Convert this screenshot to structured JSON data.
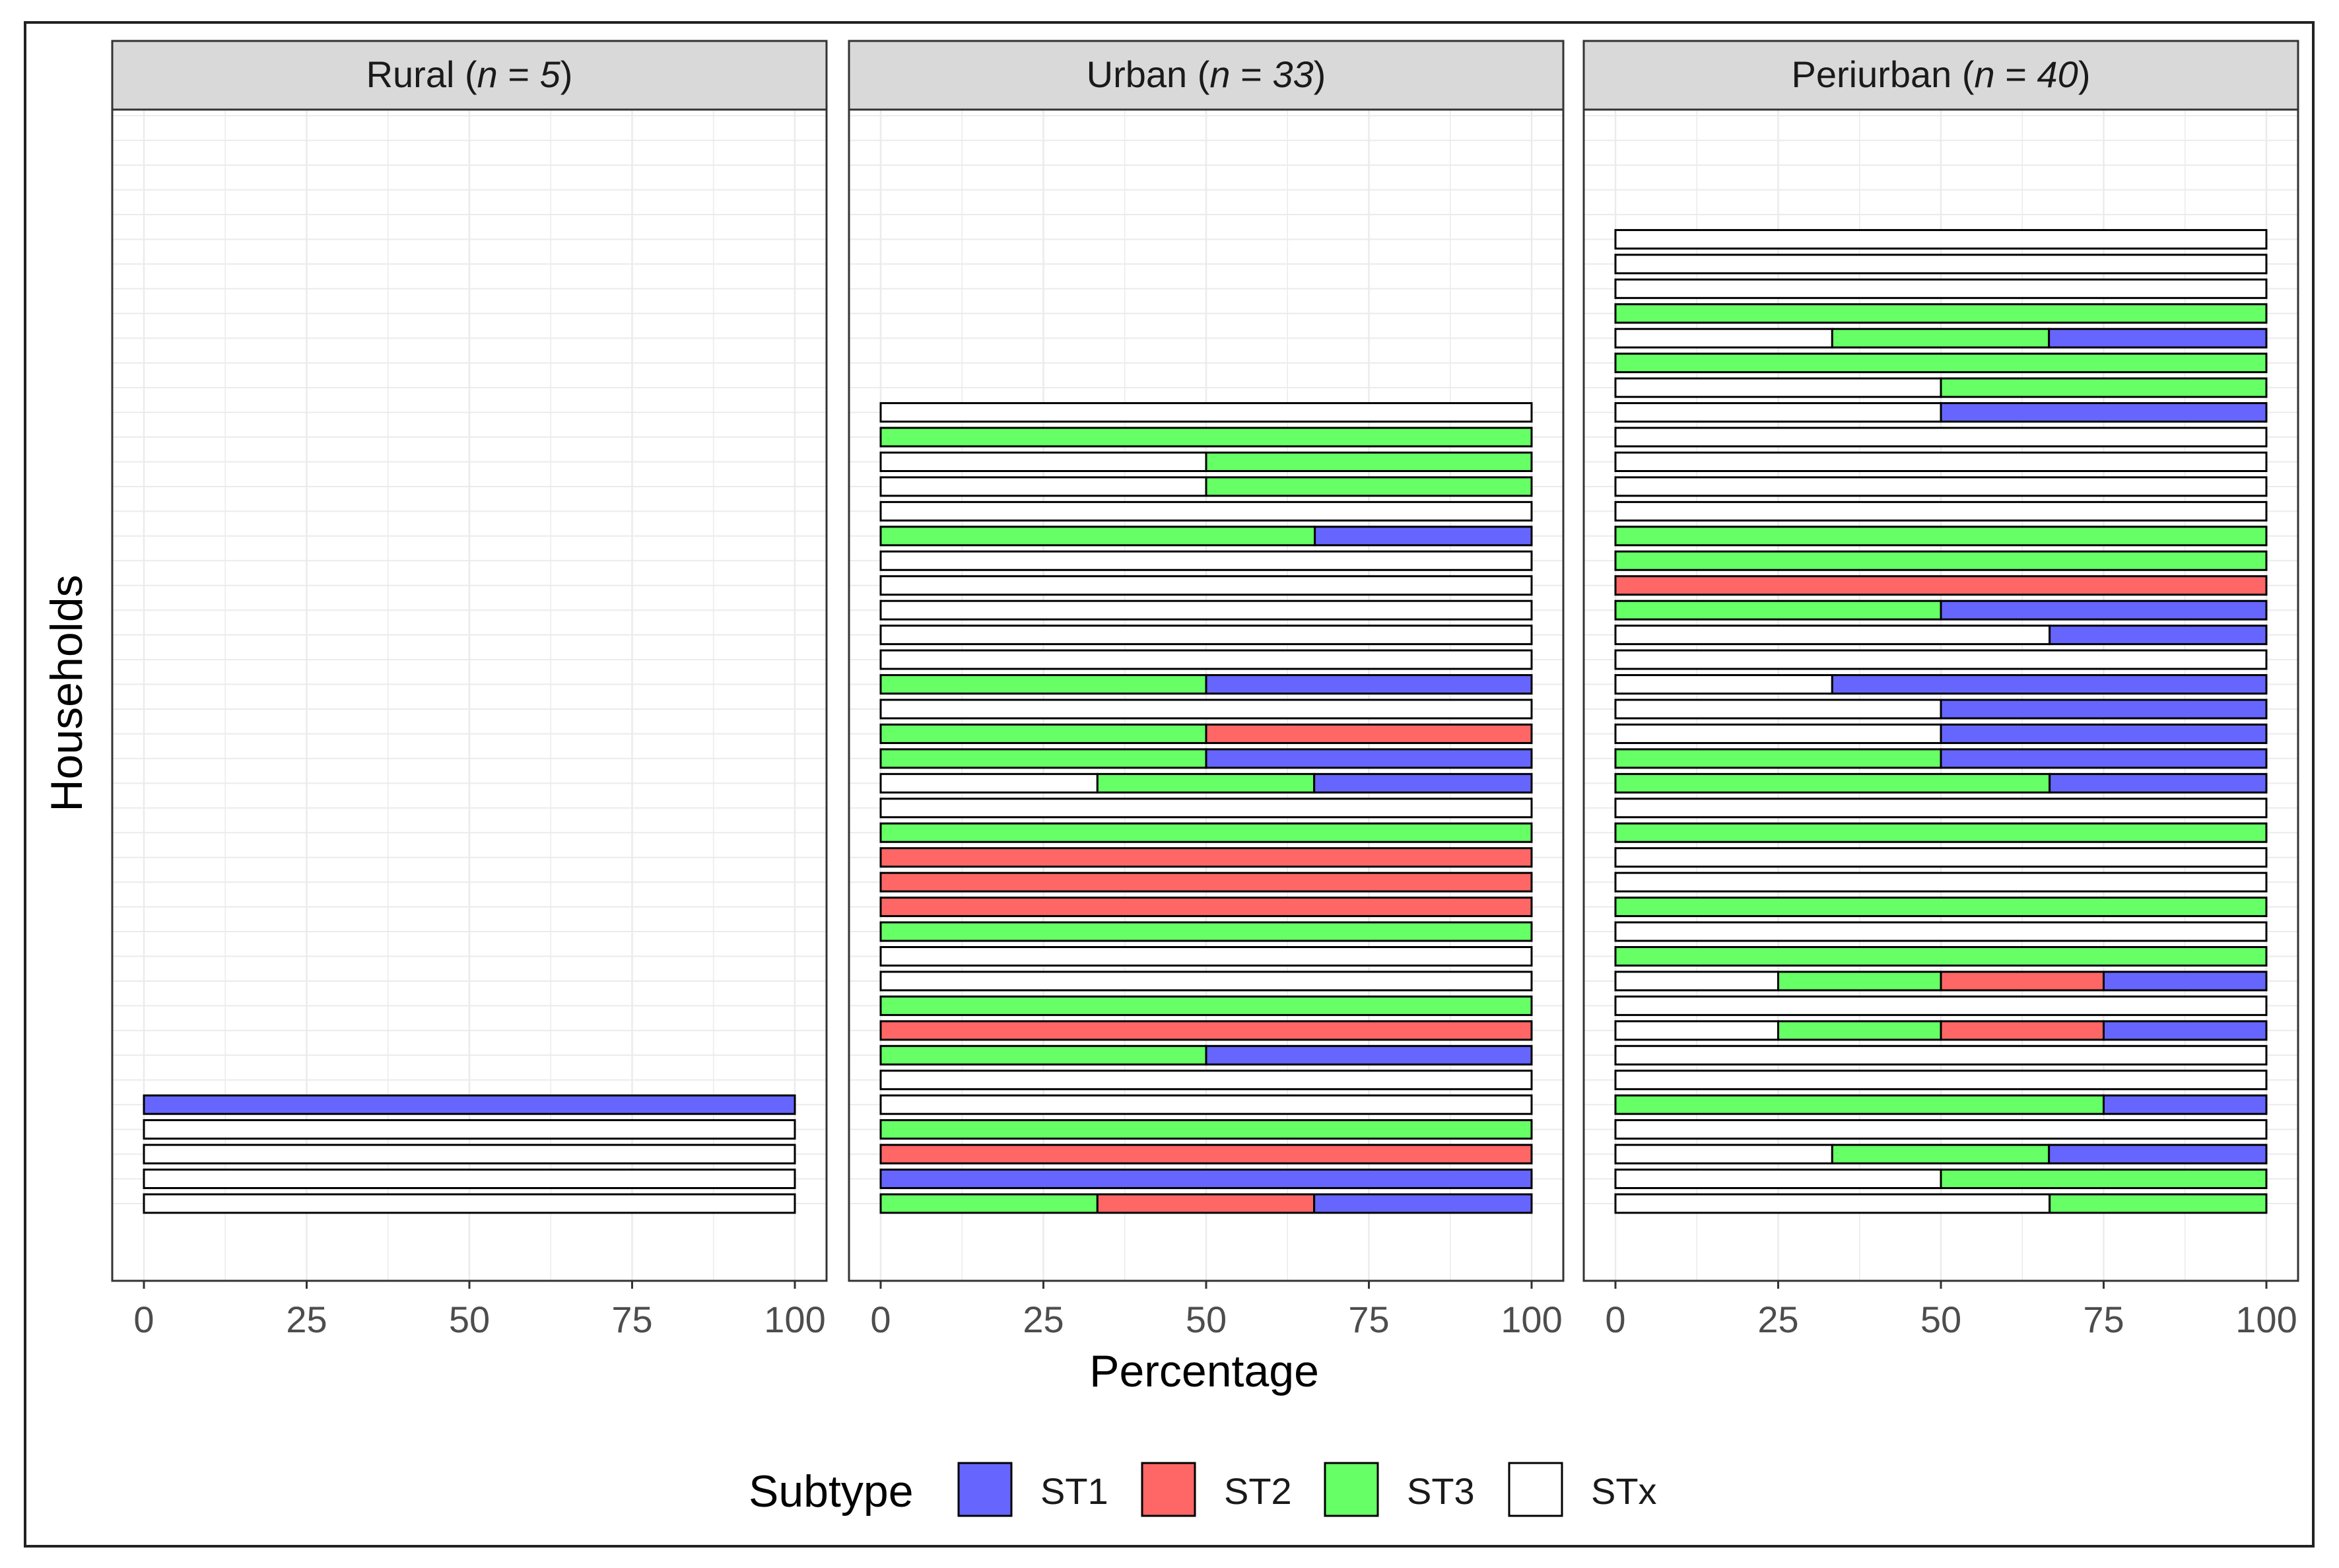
{
  "chart_data": {
    "type": "bar",
    "orientation": "horizontal",
    "stacked": true,
    "xlabel": "Percentage",
    "ylabel": "Households",
    "xlim": [
      0,
      100
    ],
    "xticks": [
      0,
      25,
      50,
      75,
      100
    ],
    "grid": true,
    "legend": {
      "title": "Subtype",
      "position": "bottom",
      "entries": [
        {
          "key": "ST1",
          "label": "ST1",
          "color": "#6666ff"
        },
        {
          "key": "ST2",
          "label": "ST2",
          "color": "#ff6666"
        },
        {
          "key": "ST3",
          "label": "ST3",
          "color": "#66ff66"
        },
        {
          "key": "STx",
          "label": "STx",
          "color": "#ffffff"
        }
      ]
    },
    "order": [
      "STx",
      "ST3",
      "ST2",
      "ST1"
    ],
    "panels": [
      {
        "name": "Rural",
        "n_label": "n",
        "n_eq": " = ",
        "n_value": "5",
        "households": [
          {
            "ST1": 100
          },
          {
            "STx": 100
          },
          {
            "STx": 100
          },
          {
            "STx": 100
          },
          {
            "STx": 100
          }
        ]
      },
      {
        "name": "Urban",
        "n_label": "n",
        "n_eq": " = ",
        "n_value": "33",
        "households": [
          {
            "STx": 100
          },
          {
            "ST3": 100
          },
          {
            "STx": 50,
            "ST3": 50
          },
          {
            "STx": 50,
            "ST3": 50
          },
          {
            "STx": 100
          },
          {
            "ST3": 66.7,
            "ST1": 33.3
          },
          {
            "STx": 100
          },
          {
            "STx": 100
          },
          {
            "STx": 100
          },
          {
            "STx": 100
          },
          {
            "STx": 100
          },
          {
            "ST3": 50,
            "ST1": 50
          },
          {
            "STx": 100
          },
          {
            "ST3": 50,
            "ST2": 50
          },
          {
            "ST3": 50,
            "ST1": 50
          },
          {
            "STx": 33.3,
            "ST3": 33.3,
            "ST1": 33.4
          },
          {
            "STx": 100
          },
          {
            "ST3": 100
          },
          {
            "ST2": 100
          },
          {
            "ST2": 100
          },
          {
            "ST2": 100
          },
          {
            "ST3": 100
          },
          {
            "STx": 100
          },
          {
            "STx": 100
          },
          {
            "ST3": 100
          },
          {
            "ST2": 100
          },
          {
            "ST3": 50,
            "ST1": 50
          },
          {
            "STx": 100
          },
          {
            "STx": 100
          },
          {
            "ST3": 100
          },
          {
            "ST2": 100
          },
          {
            "ST1": 100
          },
          {
            "ST3": 33.3,
            "ST2": 33.3,
            "ST1": 33.4
          }
        ]
      },
      {
        "name": "Periurban",
        "n_label": "n",
        "n_eq": " = ",
        "n_value": "40",
        "households": [
          {
            "STx": 100
          },
          {
            "STx": 100
          },
          {
            "STx": 100
          },
          {
            "ST3": 100
          },
          {
            "STx": 33.3,
            "ST3": 33.3,
            "ST1": 33.4
          },
          {
            "ST3": 100
          },
          {
            "STx": 50,
            "ST3": 50
          },
          {
            "STx": 50,
            "ST1": 50
          },
          {
            "STx": 100
          },
          {
            "STx": 100
          },
          {
            "STx": 100
          },
          {
            "STx": 100
          },
          {
            "ST3": 100
          },
          {
            "ST3": 100
          },
          {
            "ST2": 100
          },
          {
            "ST3": 50,
            "ST1": 50
          },
          {
            "STx": 66.7,
            "ST1": 33.3
          },
          {
            "STx": 100
          },
          {
            "STx": 33.3,
            "ST1": 66.7
          },
          {
            "STx": 50,
            "ST1": 50
          },
          {
            "STx": 50,
            "ST1": 50
          },
          {
            "ST3": 50,
            "ST1": 50
          },
          {
            "ST3": 66.7,
            "ST1": 33.3
          },
          {
            "STx": 100
          },
          {
            "ST3": 100
          },
          {
            "STx": 100
          },
          {
            "STx": 100
          },
          {
            "ST3": 100
          },
          {
            "STx": 100
          },
          {
            "ST3": 100
          },
          {
            "STx": 25,
            "ST3": 25,
            "ST2": 25,
            "ST1": 25
          },
          {
            "STx": 100
          },
          {
            "STx": 25,
            "ST3": 25,
            "ST2": 25,
            "ST1": 25
          },
          {
            "STx": 100
          },
          {
            "STx": 100
          },
          {
            "ST3": 75,
            "ST1": 25
          },
          {
            "STx": 100
          },
          {
            "STx": 33.3,
            "ST3": 33.3,
            "ST1": 33.4
          },
          {
            "STx": 50,
            "ST3": 50
          },
          {
            "STx": 66.7,
            "ST3": 33.3
          }
        ]
      }
    ]
  }
}
